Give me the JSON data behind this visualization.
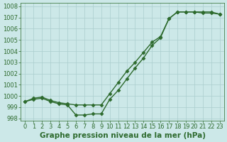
{
  "series1": {
    "x": [
      0,
      1,
      2,
      3,
      4,
      5,
      6,
      7,
      8,
      9,
      10,
      11,
      12,
      13,
      14,
      15,
      16,
      17,
      18,
      19,
      20,
      21,
      22,
      23
    ],
    "y": [
      999.5,
      999.7,
      999.8,
      999.5,
      999.3,
      999.2,
      998.3,
      998.3,
      998.4,
      998.4,
      999.7,
      1000.5,
      1001.5,
      1002.5,
      1003.4,
      1004.5,
      1005.2,
      1006.9,
      1007.5,
      1007.5,
      1007.5,
      1007.4,
      1007.4,
      1007.3
    ],
    "color": "#2d6a2d",
    "marker": "D",
    "markersize": 2.5,
    "linewidth": 1.0
  },
  "series2": {
    "x": [
      0,
      1,
      2,
      3,
      4,
      5,
      6,
      7,
      8,
      9,
      10,
      11,
      12,
      13,
      14,
      15,
      16,
      17,
      18,
      19,
      20,
      21,
      22,
      23
    ],
    "y": [
      999.5,
      999.8,
      999.9,
      999.6,
      999.4,
      999.3,
      999.2,
      999.2,
      999.2,
      999.2,
      1000.2,
      1001.2,
      1002.2,
      1003.0,
      1003.9,
      1004.8,
      1005.3,
      1006.9,
      1007.5,
      1007.5,
      1007.5,
      1007.5,
      1007.5,
      1007.3
    ],
    "color": "#2d6a2d",
    "marker": "D",
    "markersize": 2.5,
    "linewidth": 1.0
  },
  "background_color": "#cce8e8",
  "grid_color": "#aacece",
  "title": "Graphe pression niveau de la mer (hPa)",
  "xlim": [
    -0.5,
    23.5
  ],
  "ylim": [
    997.8,
    1008.3
  ],
  "yticks": [
    998,
    999,
    1000,
    1001,
    1002,
    1003,
    1004,
    1005,
    1006,
    1007,
    1008
  ],
  "xticks": [
    0,
    1,
    2,
    3,
    4,
    5,
    6,
    7,
    8,
    9,
    10,
    11,
    12,
    13,
    14,
    15,
    16,
    17,
    18,
    19,
    20,
    21,
    22,
    23
  ],
  "tick_color": "#2d6a2d",
  "text_color": "#2d6a2d",
  "title_fontsize": 7.5,
  "tick_fontsize": 6.0
}
